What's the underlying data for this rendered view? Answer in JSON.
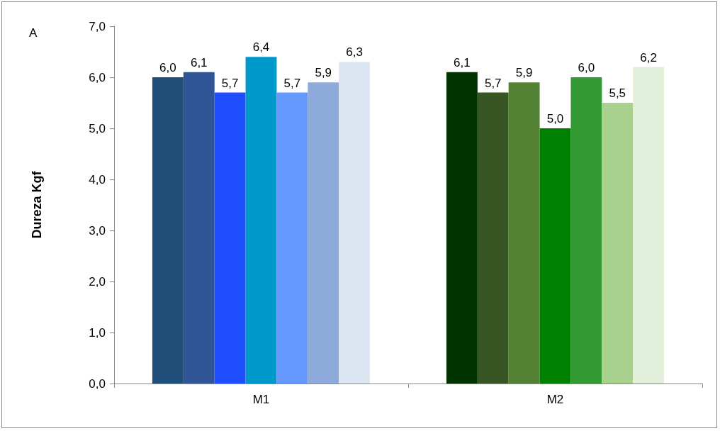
{
  "chart_data": {
    "type": "bar",
    "ylabel": "Dureza Kgf",
    "annotations": [
      "A"
    ],
    "categories": [
      "M1",
      "M2"
    ],
    "series": [
      {
        "colors": [
          "#1f4e79",
          "#003300"
        ],
        "values": [
          6.0,
          6.1
        ],
        "value_labels": [
          "6,0",
          "6,1"
        ]
      },
      {
        "colors": [
          "#2f5597",
          "#375623"
        ],
        "values": [
          6.1,
          5.7
        ],
        "value_labels": [
          "6,1",
          "5,7"
        ]
      },
      {
        "colors": [
          "#1f4eff",
          "#548235"
        ],
        "values": [
          5.7,
          5.9
        ],
        "value_labels": [
          "5,7",
          "5,9"
        ]
      },
      {
        "colors": [
          "#0099cc",
          "#008000"
        ],
        "values": [
          6.4,
          5.0
        ],
        "value_labels": [
          "6,4",
          "5,0"
        ]
      },
      {
        "colors": [
          "#6699ff",
          "#339933"
        ],
        "values": [
          5.7,
          6.0
        ],
        "value_labels": [
          "5,7",
          "6,0"
        ]
      },
      {
        "colors": [
          "#8eaadb",
          "#a9d18e"
        ],
        "values": [
          5.9,
          5.5
        ],
        "value_labels": [
          "5,9",
          "5,5"
        ]
      },
      {
        "colors": [
          "#dce6f2",
          "#e2efda"
        ],
        "values": [
          6.3,
          6.2
        ],
        "value_labels": [
          "6,3",
          "6,2"
        ]
      }
    ],
    "ylim": [
      0,
      7
    ],
    "yticks": [
      {
        "value": 0,
        "label": "0,0"
      },
      {
        "value": 1,
        "label": "1,0"
      },
      {
        "value": 2,
        "label": "2,0"
      },
      {
        "value": 3,
        "label": "3,0"
      },
      {
        "value": 4,
        "label": "4,0"
      },
      {
        "value": 5,
        "label": "5,0"
      },
      {
        "value": 6,
        "label": "6,0"
      },
      {
        "value": 7,
        "label": "7,0"
      }
    ],
    "grid": false
  }
}
